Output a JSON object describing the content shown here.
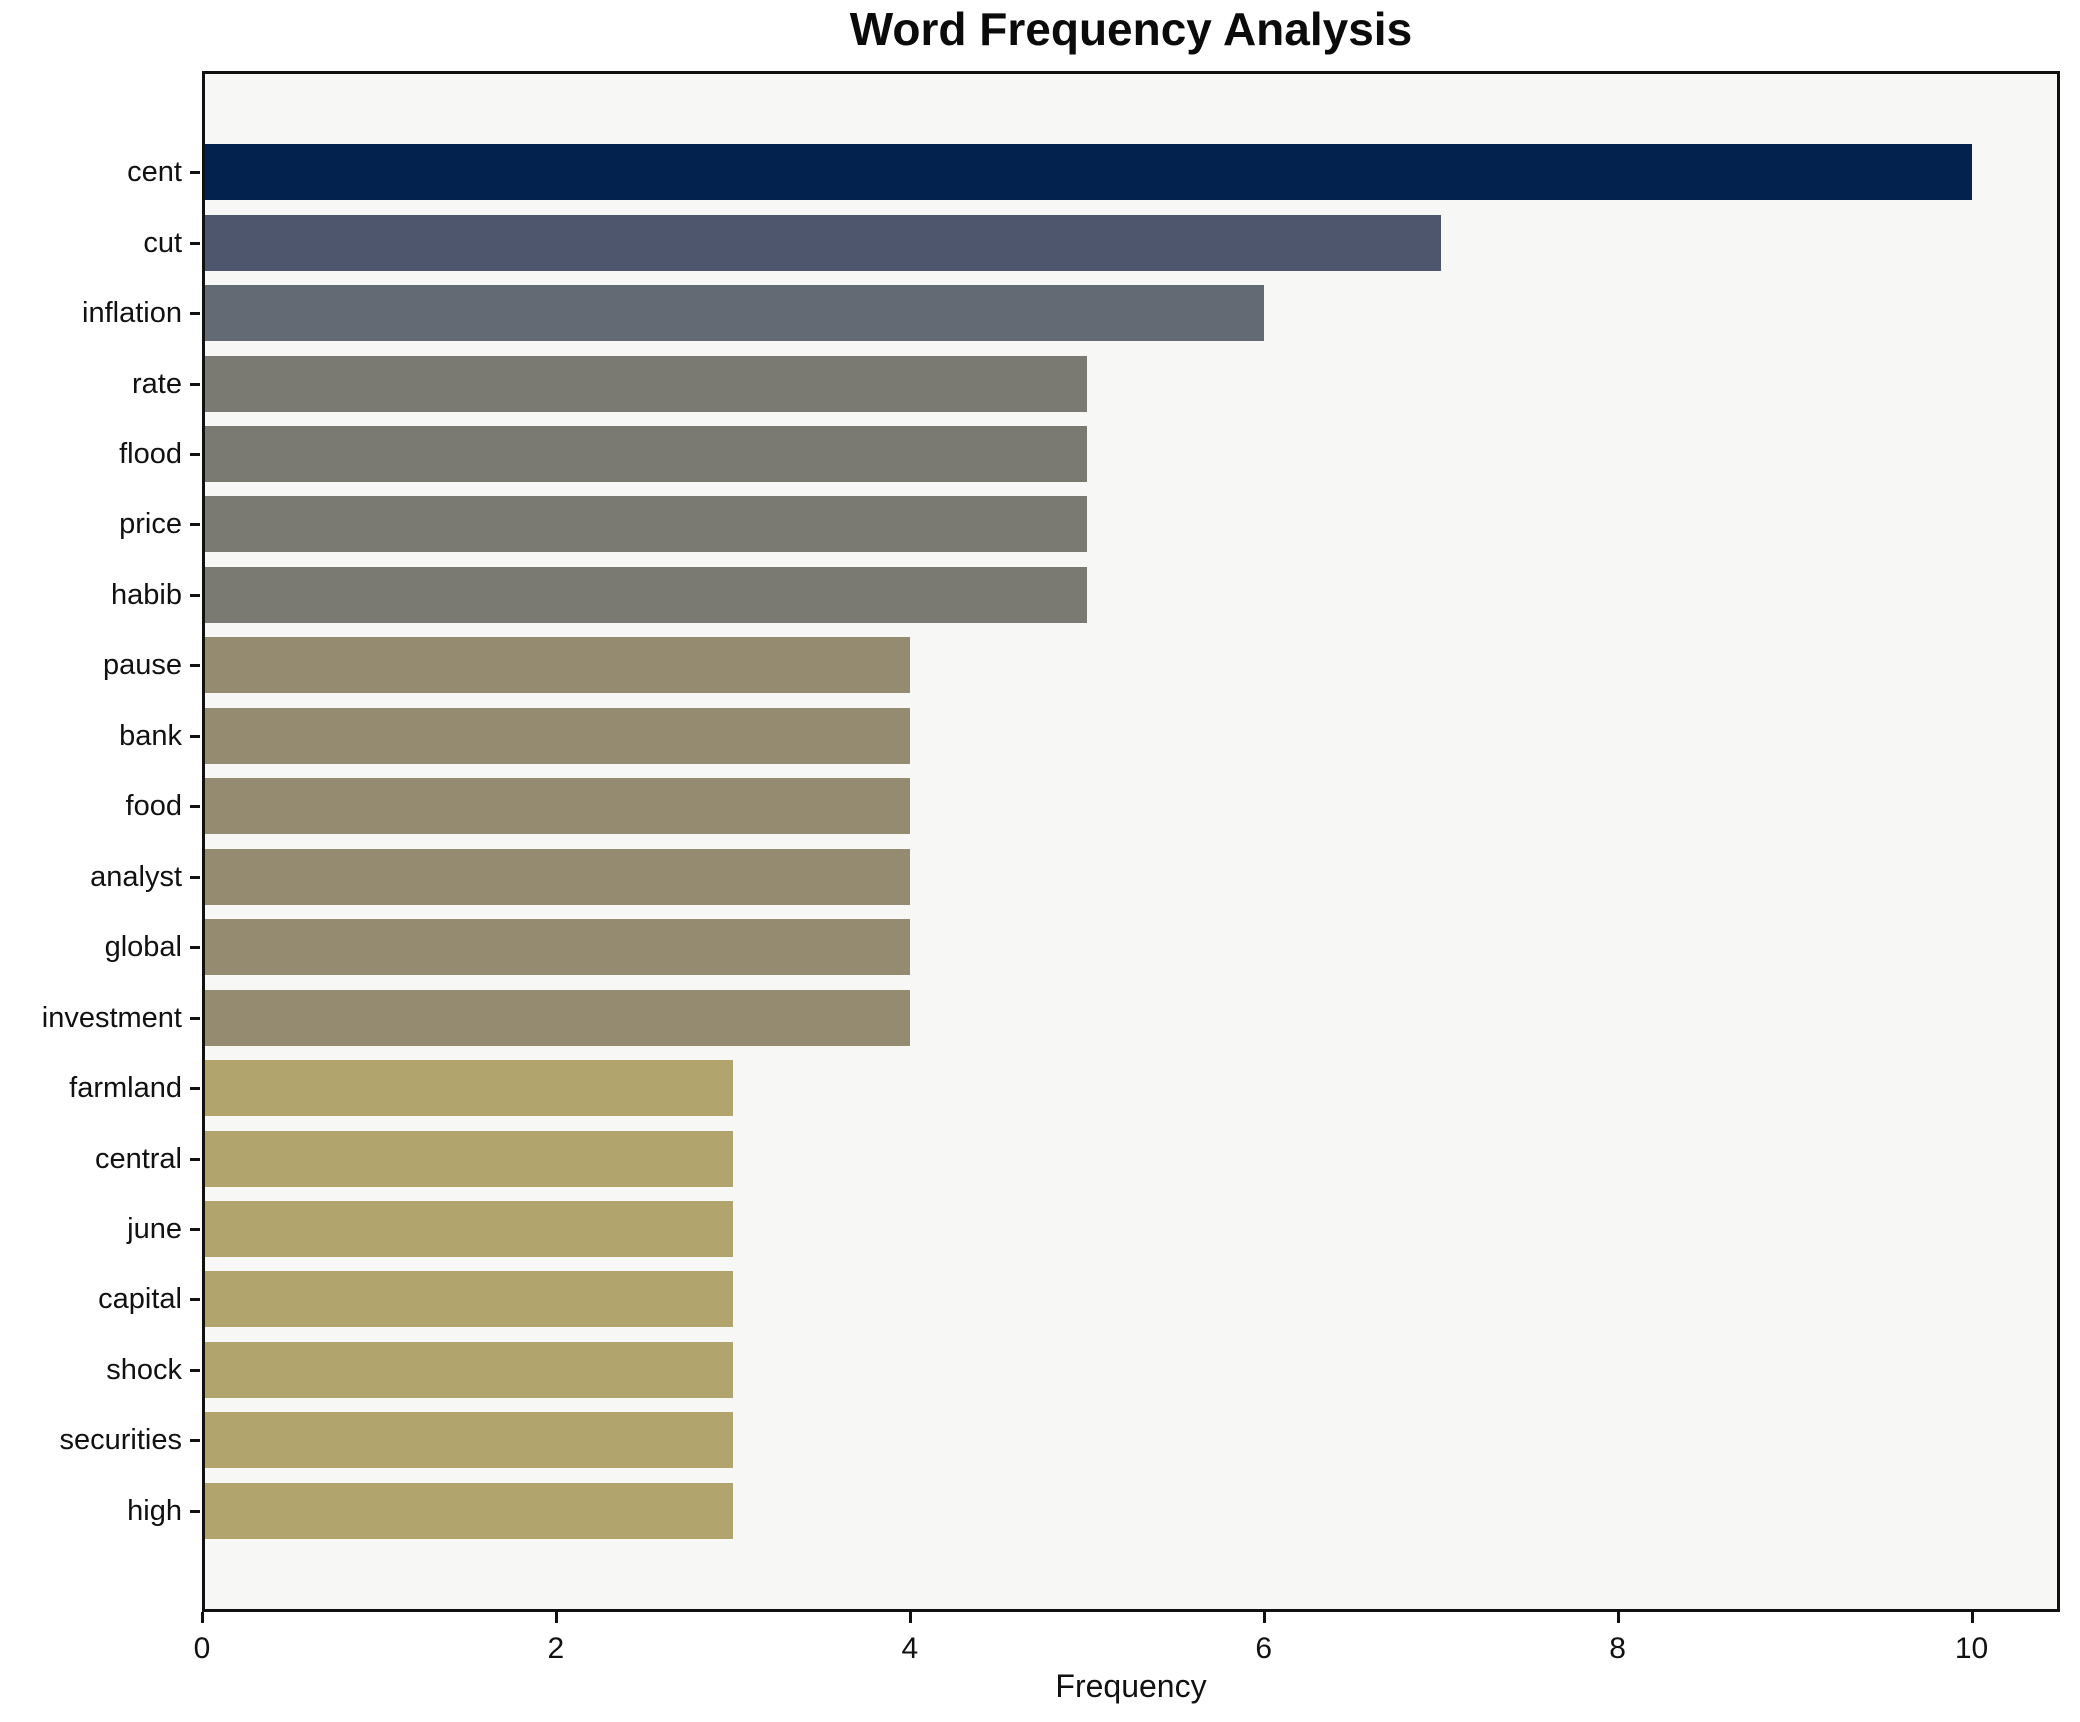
{
  "chart_data": {
    "type": "bar",
    "orientation": "horizontal",
    "title": "Word Frequency Analysis",
    "xlabel": "Frequency",
    "ylabel": "",
    "categories": [
      "cent",
      "cut",
      "inflation",
      "rate",
      "flood",
      "price",
      "habib",
      "pause",
      "bank",
      "food",
      "analyst",
      "global",
      "investment",
      "farmland",
      "central",
      "june",
      "capital",
      "shock",
      "securities",
      "high"
    ],
    "values": [
      10,
      7,
      6,
      5,
      5,
      5,
      5,
      4,
      4,
      4,
      4,
      4,
      4,
      3,
      3,
      3,
      3,
      3,
      3,
      3
    ],
    "bar_colors": [
      "#03234e",
      "#4e566e",
      "#646a74",
      "#7b7a72",
      "#7b7a72",
      "#7b7a72",
      "#7b7a72",
      "#948b71",
      "#948b71",
      "#948b71",
      "#948b71",
      "#948b71",
      "#948b71",
      "#b1a46c",
      "#b1a46c",
      "#b1a46c",
      "#b1a46c",
      "#b1a46c",
      "#b1a46c",
      "#b1a46c"
    ],
    "xlim": [
      0,
      10.5
    ],
    "xticks": [
      0,
      2,
      4,
      6,
      8,
      10
    ],
    "grid": false,
    "legend_position": "none",
    "colors": {
      "figure_bg": "#ffffff",
      "plot_bg": "#f7f7f6",
      "spine": "#111111",
      "text": "#111111"
    }
  }
}
